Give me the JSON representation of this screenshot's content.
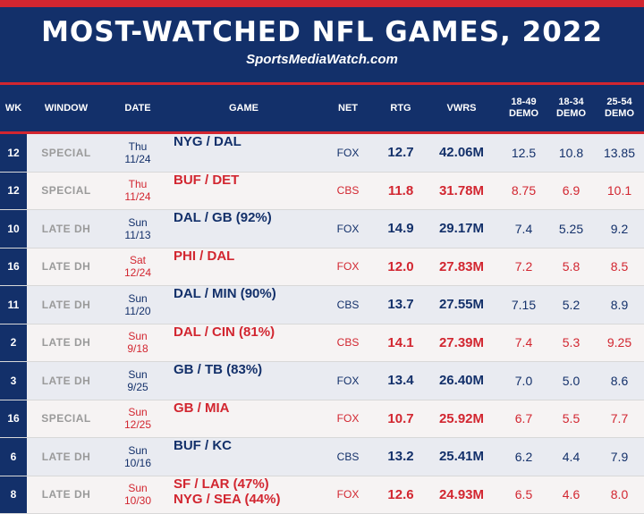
{
  "header": {
    "title": "MOST-WATCHED NFL GAMES, 2022",
    "subtitle": "SportsMediaWatch.com"
  },
  "colors": {
    "navy": "#13306a",
    "red": "#d22630"
  },
  "chart_data": {
    "type": "table",
    "columns": [
      "WK",
      "WINDOW",
      "DATE",
      "GAME",
      "NET",
      "RTG",
      "VWRS",
      "18-49 DEMO",
      "18-34 DEMO",
      "25-54 DEMO"
    ],
    "rows": [
      {
        "wk": "12",
        "window": "SPECIAL",
        "day": "Thu",
        "date": "11/24",
        "game": [
          "NYG / DAL"
        ],
        "net": "FOX",
        "rtg": "12.7",
        "vwrs": "42.06M",
        "d1849": "12.5",
        "d1834": "10.8",
        "d2554": "13.85"
      },
      {
        "wk": "12",
        "window": "SPECIAL",
        "day": "Thu",
        "date": "11/24",
        "game": [
          "BUF / DET"
        ],
        "net": "CBS",
        "rtg": "11.8",
        "vwrs": "31.78M",
        "d1849": "8.75",
        "d1834": "6.9",
        "d2554": "10.1"
      },
      {
        "wk": "10",
        "window": "LATE DH",
        "day": "Sun",
        "date": "11/13",
        "game": [
          "DAL / GB (92%)"
        ],
        "net": "FOX",
        "rtg": "14.9",
        "vwrs": "29.17M",
        "d1849": "7.4",
        "d1834": "5.25",
        "d2554": "9.2"
      },
      {
        "wk": "16",
        "window": "LATE DH",
        "day": "Sat",
        "date": "12/24",
        "game": [
          "PHI / DAL"
        ],
        "net": "FOX",
        "rtg": "12.0",
        "vwrs": "27.83M",
        "d1849": "7.2",
        "d1834": "5.8",
        "d2554": "8.5"
      },
      {
        "wk": "11",
        "window": "LATE DH",
        "day": "Sun",
        "date": "11/20",
        "game": [
          "DAL / MIN (90%)"
        ],
        "net": "CBS",
        "rtg": "13.7",
        "vwrs": "27.55M",
        "d1849": "7.15",
        "d1834": "5.2",
        "d2554": "8.9"
      },
      {
        "wk": "2",
        "window": "LATE DH",
        "day": "Sun",
        "date": "9/18",
        "game": [
          "DAL / CIN (81%)"
        ],
        "net": "CBS",
        "rtg": "14.1",
        "vwrs": "27.39M",
        "d1849": "7.4",
        "d1834": "5.3",
        "d2554": "9.25"
      },
      {
        "wk": "3",
        "window": "LATE DH",
        "day": "Sun",
        "date": "9/25",
        "game": [
          "GB / TB (83%)"
        ],
        "net": "FOX",
        "rtg": "13.4",
        "vwrs": "26.40M",
        "d1849": "7.0",
        "d1834": "5.0",
        "d2554": "8.6"
      },
      {
        "wk": "16",
        "window": "SPECIAL",
        "day": "Sun",
        "date": "12/25",
        "game": [
          "GB / MIA"
        ],
        "net": "FOX",
        "rtg": "10.7",
        "vwrs": "25.92M",
        "d1849": "6.7",
        "d1834": "5.5",
        "d2554": "7.7"
      },
      {
        "wk": "6",
        "window": "LATE DH",
        "day": "Sun",
        "date": "10/16",
        "game": [
          "BUF / KC"
        ],
        "net": "CBS",
        "rtg": "13.2",
        "vwrs": "25.41M",
        "d1849": "6.2",
        "d1834": "4.4",
        "d2554": "7.9"
      },
      {
        "wk": "8",
        "window": "LATE DH",
        "day": "Sun",
        "date": "10/30",
        "game": [
          "SF / LAR (47%)",
          "NYG / SEA (44%)"
        ],
        "net": "FOX",
        "rtg": "12.6",
        "vwrs": "24.93M",
        "d1849": "6.5",
        "d1834": "4.6",
        "d2554": "8.0"
      }
    ]
  }
}
